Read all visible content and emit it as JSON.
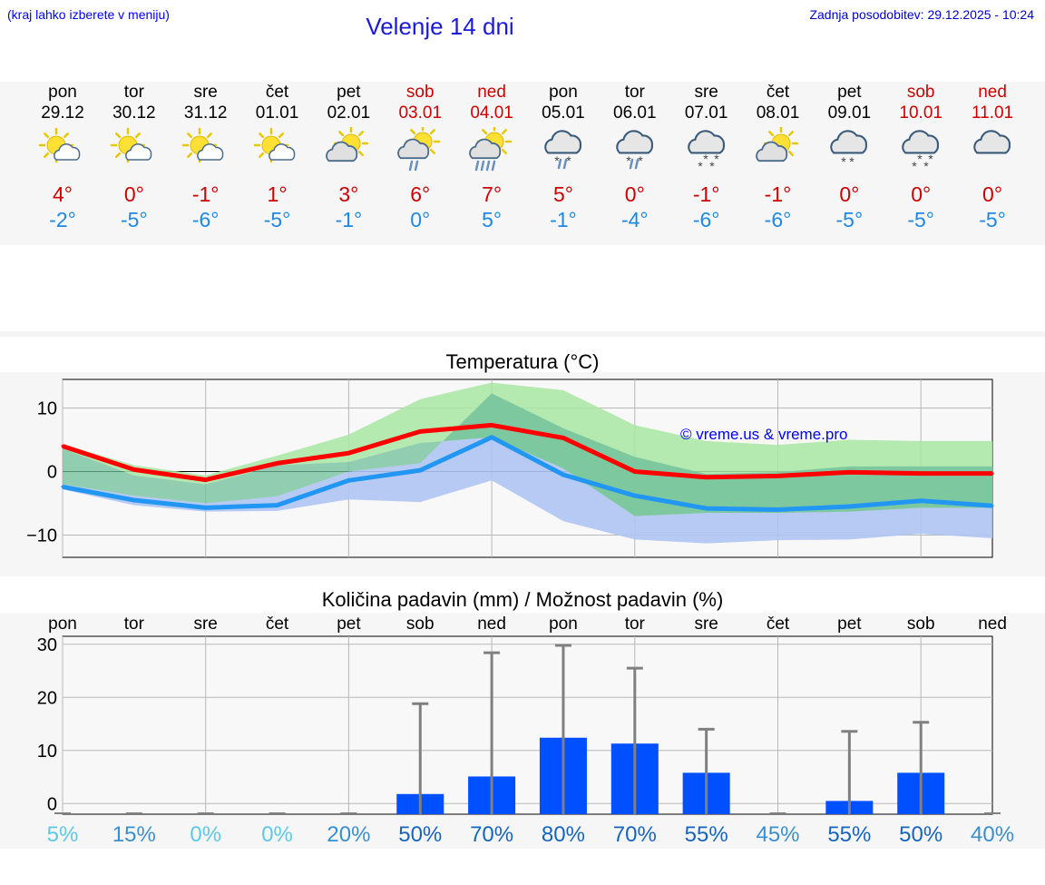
{
  "header": {
    "menu_hint": "(kraj lahko izberete v meniju)",
    "title": "Velenje 14 dni",
    "last_update": "Zadnja posodobitev: 29.12.2025 - 10:24"
  },
  "days": [
    {
      "name": "pon",
      "date": "29.12",
      "icon": "sun-cloud-icon",
      "tmax": "4°",
      "tmin": "-2°",
      "weekend": false
    },
    {
      "name": "tor",
      "date": "30.12",
      "icon": "sun-cloud-icon",
      "tmax": "0°",
      "tmin": "-5°",
      "weekend": false
    },
    {
      "name": "sre",
      "date": "31.12",
      "icon": "sun-cloud-icon",
      "tmax": "-1°",
      "tmin": "-6°",
      "weekend": false
    },
    {
      "name": "čet",
      "date": "01.01",
      "icon": "sun-cloud-icon",
      "tmax": "1°",
      "tmin": "-5°",
      "weekend": false
    },
    {
      "name": "pet",
      "date": "02.01",
      "icon": "partly-cloudy-icon",
      "tmax": "3°",
      "tmin": "-1°",
      "weekend": false
    },
    {
      "name": "sob",
      "date": "03.01",
      "icon": "sun-cloud-rain-icon",
      "tmax": "6°",
      "tmin": "0°",
      "weekend": true
    },
    {
      "name": "ned",
      "date": "04.01",
      "icon": "sun-cloud-heavy-rain-icon",
      "tmax": "7°",
      "tmin": "5°",
      "weekend": true
    },
    {
      "name": "pon",
      "date": "05.01",
      "icon": "cloud-sleet-icon",
      "tmax": "5°",
      "tmin": "-1°",
      "weekend": false
    },
    {
      "name": "tor",
      "date": "06.01",
      "icon": "cloud-sleet-icon",
      "tmax": "0°",
      "tmin": "-4°",
      "weekend": false
    },
    {
      "name": "sre",
      "date": "07.01",
      "icon": "cloud-snow-icon",
      "tmax": "-1°",
      "tmin": "-6°",
      "weekend": false
    },
    {
      "name": "čet",
      "date": "08.01",
      "icon": "partly-cloudy-icon",
      "tmax": "-1°",
      "tmin": "-6°",
      "weekend": false
    },
    {
      "name": "pet",
      "date": "09.01",
      "icon": "cloud-light-snow-icon",
      "tmax": "0°",
      "tmin": "-5°",
      "weekend": false
    },
    {
      "name": "sob",
      "date": "10.01",
      "icon": "cloud-snow-icon",
      "tmax": "0°",
      "tmin": "-5°",
      "weekend": true
    },
    {
      "name": "ned",
      "date": "11.01",
      "icon": "cloudy-icon",
      "tmax": "0°",
      "tmin": "-5°",
      "weekend": true
    }
  ],
  "colors": {
    "weekend": "#d00000",
    "tmax_text": "#cc0000",
    "tmin_text": "#1e88e5",
    "max_line": "#ff0000",
    "min_line": "#2196f3",
    "max_band": "#a8e6a3",
    "min_band": "#aec4f2",
    "bar": "#0050ff",
    "error_bar": "#808080"
  },
  "chart_data": [
    {
      "type": "line",
      "title": "Temperatura (°C)",
      "watermark": "© vreme.us & vreme.pro",
      "ylim": [
        -13.5,
        14.5
      ],
      "y_ticks": [
        -10,
        0,
        10
      ],
      "y_tick_labels": [
        "−10",
        "0",
        "10"
      ],
      "grid": true,
      "x": [
        0,
        1,
        2,
        3,
        4,
        5,
        6,
        7,
        8,
        9,
        10,
        11,
        12,
        13
      ],
      "series": [
        {
          "name": "max",
          "values": [
            4.0,
            0.3,
            -1.3,
            1.3,
            2.9,
            6.3,
            7.3,
            5.3,
            0.0,
            -0.9,
            -0.7,
            -0.1,
            -0.3,
            -0.3
          ],
          "band_low": [
            3.6,
            -0.6,
            -2.0,
            1.0,
            1.5,
            4.5,
            5.4,
            0.5,
            -7.0,
            -6.5,
            -6.5,
            -6.3,
            -5.7,
            -5.7
          ],
          "band_high": [
            4.3,
            1.0,
            -0.6,
            2.5,
            5.8,
            11.4,
            14.0,
            12.8,
            7.3,
            4.8,
            4.2,
            5.0,
            4.8,
            4.8
          ]
        },
        {
          "name": "min",
          "values": [
            -2.4,
            -4.5,
            -5.7,
            -5.3,
            -1.4,
            0.2,
            5.4,
            -0.5,
            -3.8,
            -5.8,
            -6.0,
            -5.5,
            -4.6,
            -5.4
          ],
          "band_low": [
            -2.8,
            -5.3,
            -6.3,
            -6.2,
            -4.4,
            -4.8,
            -1.4,
            -7.8,
            -10.7,
            -11.3,
            -10.8,
            -10.7,
            -9.8,
            -10.5
          ],
          "band_high": [
            -2.0,
            -3.8,
            -5.0,
            -3.9,
            0.0,
            1.3,
            12.3,
            6.8,
            2.3,
            -0.4,
            -0.1,
            0.8,
            0.8,
            0.8
          ]
        }
      ]
    },
    {
      "type": "bar",
      "title": "Količina padavin (mm) / Možnost padavin (%)",
      "categories": [
        "pon",
        "tor",
        "sre",
        "čet",
        "pet",
        "sob",
        "ned",
        "pon",
        "tor",
        "sre",
        "čet",
        "pet",
        "sob",
        "ned"
      ],
      "values": [
        0,
        0,
        0,
        0,
        0,
        1.8,
        5.1,
        12.4,
        11.3,
        5.8,
        0,
        0.5,
        5.8,
        0
      ],
      "error_high": [
        0,
        0,
        0,
        0,
        0,
        18.8,
        28.4,
        29.8,
        25.5,
        14.0,
        0,
        13.6,
        15.3,
        0
      ],
      "chance": [
        "5%",
        "15%",
        "0%",
        "0%",
        "20%",
        "50%",
        "70%",
        "80%",
        "70%",
        "55%",
        "45%",
        "55%",
        "50%",
        "40%"
      ],
      "chance_values": [
        5,
        15,
        0,
        0,
        20,
        50,
        70,
        80,
        70,
        55,
        45,
        55,
        50,
        40
      ],
      "ylim": [
        -2,
        31.5
      ],
      "y_ticks": [
        0,
        10,
        20,
        30
      ],
      "y_tick_labels": [
        "0",
        "10",
        "20",
        "30"
      ],
      "grid": true
    }
  ]
}
